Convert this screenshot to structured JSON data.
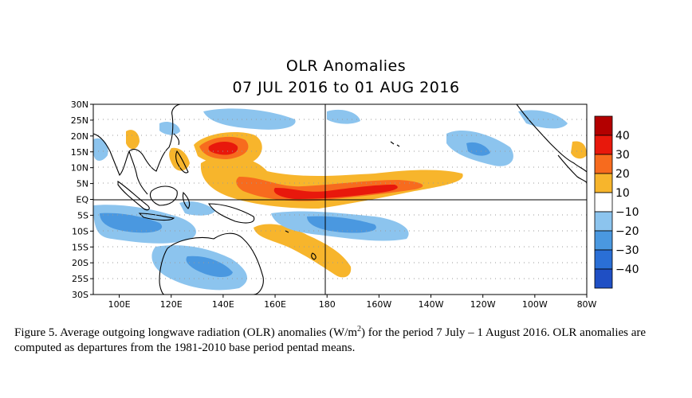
{
  "title": "OLR Anomalies",
  "subtitle": "07 JUL 2016 to 01 AUG 2016",
  "map_data": {
    "lat_labels": [
      "30N",
      "25N",
      "20N",
      "15N",
      "10N",
      "5N",
      "EQ",
      "5S",
      "10S",
      "15S",
      "20S",
      "25S",
      "30S"
    ],
    "lon_labels": [
      "100E",
      "120E",
      "140E",
      "160E",
      "180",
      "160W",
      "140W",
      "120W",
      "100W",
      "80W"
    ],
    "lat_range": [
      -30,
      30
    ],
    "lon_range": [
      90,
      280
    ],
    "colorbar": {
      "labels": [
        "40",
        "30",
        "20",
        "10",
        "−10",
        "−20",
        "−30",
        "−40"
      ],
      "colors": [
        "#b30000",
        "#e8180c",
        "#f76b1e",
        "#f7b52c",
        "#ffffff",
        "#8cc4ee",
        "#4a98e0",
        "#2a6fd6",
        "#1f4fc4"
      ]
    },
    "colors": {
      "positive_20": "#f7b52c",
      "positive_30": "#f76b1e",
      "positive_40": "#e8180c",
      "negative_10": "#8cc4ee",
      "negative_20": "#4a98e0",
      "negative_30": "#2a6fd6"
    },
    "reference_lines": [
      "EQ",
      "180"
    ]
  },
  "caption": {
    "part1": "Figure 5. Average outgoing longwave radiation (OLR) anomalies (W/m",
    "sup": "2",
    "part2": ") for the period 7 July – 1 August 2016. OLR anomalies are computed as departures from the 1981-2010 base period pentad means."
  }
}
